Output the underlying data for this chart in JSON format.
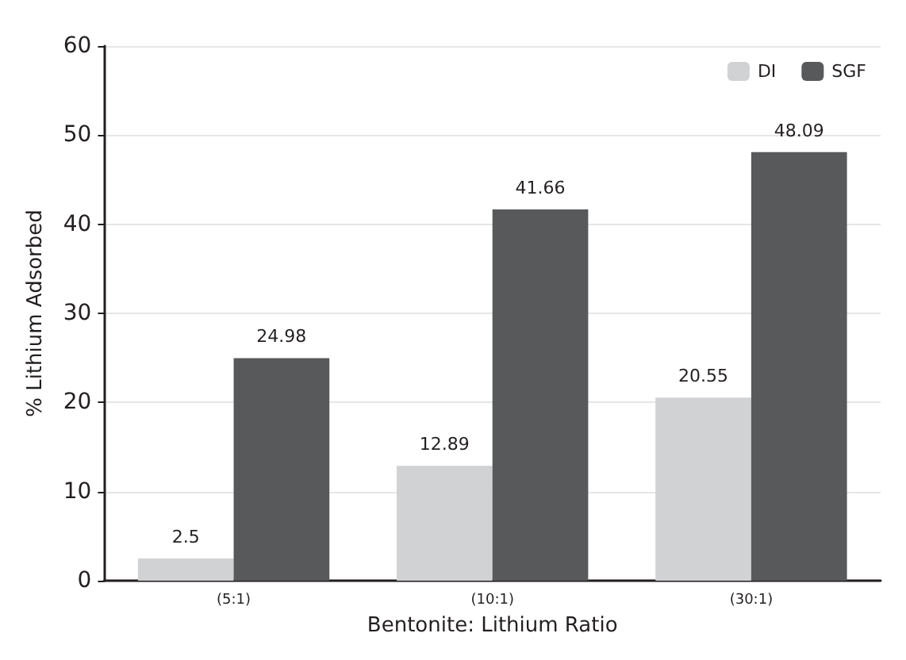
{
  "chart_data": {
    "type": "bar",
    "xlabel": "Bentonite: Lithium Ratio",
    "ylabel": "% Lithium Adsorbed",
    "categories": [
      "(5:1)",
      "(10:1)",
      "(30:1)"
    ],
    "series": [
      {
        "name": "DI",
        "color": "#d1d2d4",
        "values": [
          2.5,
          12.89,
          20.55
        ]
      },
      {
        "name": "SGF",
        "color": "#58595b",
        "values": [
          24.98,
          41.66,
          48.09
        ]
      }
    ],
    "ylim": [
      0,
      60
    ],
    "yticks": [
      0,
      10,
      20,
      30,
      40,
      50,
      60
    ],
    "grid": "y",
    "legend": "top right",
    "data_labels": true
  }
}
